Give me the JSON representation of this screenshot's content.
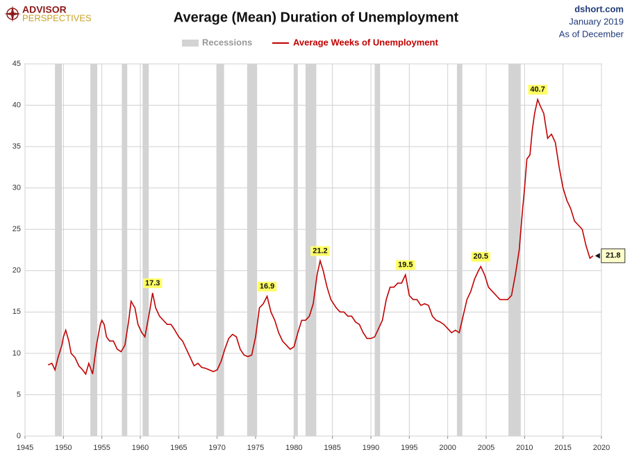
{
  "logo": {
    "line1": "ADVISOR",
    "line2": "PERSPECTIVES"
  },
  "source": {
    "site": "dshort.com",
    "date": "January 2019",
    "note": "As of December"
  },
  "chart_data": {
    "type": "line",
    "title": "Average (Mean) Duration of Unemployment",
    "recessions": {
      "name": "Recessions",
      "color": "#d3d3d3",
      "periods": [
        [
          1948.9,
          1949.8
        ],
        [
          1953.5,
          1954.4
        ],
        [
          1957.6,
          1958.3
        ],
        [
          1960.3,
          1961.1
        ],
        [
          1969.9,
          1970.9
        ],
        [
          1973.9,
          1975.2
        ],
        [
          1980.0,
          1980.5
        ],
        [
          1981.5,
          1982.9
        ],
        [
          1990.5,
          1991.2
        ],
        [
          2001.2,
          2001.9
        ],
        [
          2007.9,
          2009.5
        ]
      ]
    },
    "x": [
      1948.0,
      1948.5,
      1948.9,
      1949.3,
      1949.8,
      1950.0,
      1950.3,
      1950.7,
      1951.0,
      1951.5,
      1952.0,
      1952.5,
      1952.9,
      1953.3,
      1953.8,
      1954.3,
      1954.8,
      1955.0,
      1955.3,
      1955.6,
      1956.0,
      1956.5,
      1957.0,
      1957.5,
      1958.0,
      1958.5,
      1958.8,
      1959.3,
      1959.7,
      1960.2,
      1960.6,
      1961.2,
      1961.6,
      1962.0,
      1962.5,
      1963.0,
      1963.5,
      1964.0,
      1964.5,
      1965.0,
      1965.5,
      1966.0,
      1966.5,
      1967.0,
      1967.5,
      1968.0,
      1968.5,
      1969.0,
      1969.5,
      1970.0,
      1970.5,
      1971.0,
      1971.5,
      1972.0,
      1972.5,
      1973.0,
      1973.5,
      1974.0,
      1974.5,
      1975.0,
      1975.5,
      1976.0,
      1976.5,
      1977.0,
      1977.5,
      1978.0,
      1978.5,
      1979.0,
      1979.5,
      1980.0,
      1980.5,
      1981.0,
      1981.5,
      1982.0,
      1982.5,
      1983.0,
      1983.4,
      1983.8,
      1984.3,
      1984.8,
      1985.5,
      1986.0,
      1986.5,
      1987.0,
      1987.5,
      1988.0,
      1988.5,
      1989.0,
      1989.5,
      1990.0,
      1990.5,
      1991.0,
      1991.5,
      1992.0,
      1992.5,
      1993.0,
      1993.5,
      1994.0,
      1994.5,
      1995.0,
      1995.5,
      1996.0,
      1996.5,
      1997.0,
      1997.5,
      1998.0,
      1998.5,
      1999.0,
      1999.5,
      2000.0,
      2000.5,
      2001.0,
      2001.5,
      2002.0,
      2002.5,
      2003.0,
      2003.5,
      2004.0,
      2004.3,
      2004.8,
      2005.3,
      2005.8,
      2006.3,
      2006.8,
      2007.3,
      2007.8,
      2008.3,
      2008.8,
      2009.3,
      2009.7,
      2010.0,
      2010.3,
      2010.7,
      2011.0,
      2011.3,
      2011.7,
      2012.0,
      2012.5,
      2013.0,
      2013.5,
      2014.0,
      2014.5,
      2015.0,
      2015.5,
      2016.0,
      2016.5,
      2017.0,
      2017.5,
      2018.0,
      2018.5,
      2018.9
    ],
    "series": [
      {
        "name": "Average Weeks of Unemployment",
        "color": "#c00000",
        "values": [
          8.6,
          8.8,
          8.0,
          9.5,
          11.0,
          12.0,
          12.8,
          11.5,
          10.0,
          9.5,
          8.5,
          8.0,
          7.5,
          8.8,
          7.5,
          11.0,
          13.5,
          14.0,
          13.5,
          12.0,
          11.5,
          11.5,
          10.5,
          10.2,
          11.0,
          14.0,
          16.3,
          15.5,
          13.5,
          12.5,
          12.0,
          15.0,
          17.3,
          15.5,
          14.5,
          14.0,
          13.5,
          13.5,
          12.8,
          12.0,
          11.5,
          10.5,
          9.5,
          8.5,
          8.8,
          8.3,
          8.2,
          8.0,
          7.8,
          8.0,
          9.0,
          10.5,
          11.8,
          12.3,
          12.0,
          10.5,
          9.8,
          9.6,
          9.8,
          12.0,
          15.5,
          16.0,
          16.9,
          15.0,
          14.0,
          12.5,
          11.5,
          11.0,
          10.5,
          10.8,
          12.5,
          14.0,
          14.0,
          14.5,
          16.0,
          19.5,
          21.2,
          20.0,
          18.0,
          16.5,
          15.5,
          15.0,
          15.0,
          14.5,
          14.5,
          13.8,
          13.5,
          12.5,
          11.8,
          11.8,
          12.0,
          13.0,
          14.0,
          16.5,
          18.0,
          18.0,
          18.5,
          18.5,
          19.5,
          17.0,
          16.5,
          16.5,
          15.8,
          16.0,
          15.8,
          14.5,
          14.0,
          13.8,
          13.5,
          13.0,
          12.5,
          12.8,
          12.5,
          14.5,
          16.5,
          17.5,
          19.0,
          20.0,
          20.5,
          19.5,
          18.0,
          17.5,
          17.0,
          16.5,
          16.5,
          16.5,
          17.0,
          19.5,
          22.5,
          27.0,
          30.0,
          33.5,
          34.0,
          37.0,
          39.0,
          40.7,
          40.0,
          39.0,
          36.0,
          36.5,
          35.5,
          32.5,
          30.0,
          28.5,
          27.5,
          26.0,
          25.5,
          25.0,
          23.0,
          21.5,
          21.8
        ]
      }
    ],
    "annotations": [
      {
        "x": 1961.6,
        "value": 17.3
      },
      {
        "x": 1976.5,
        "value": 16.9
      },
      {
        "x": 1983.4,
        "value": 21.2
      },
      {
        "x": 1994.5,
        "value": 19.5
      },
      {
        "x": 2004.3,
        "value": 20.5
      },
      {
        "x": 2011.7,
        "value": 40.7
      }
    ],
    "last_value": {
      "x": 2018.9,
      "value": 21.8
    },
    "xlim": [
      1945,
      2020
    ],
    "xticks": [
      1945,
      1950,
      1955,
      1960,
      1965,
      1970,
      1975,
      1980,
      1985,
      1990,
      1995,
      2000,
      2005,
      2010,
      2015,
      2020
    ],
    "ylim": [
      0,
      45
    ],
    "yticks": [
      0,
      5,
      10,
      15,
      20,
      25,
      30,
      35,
      40,
      45
    ],
    "grid": true
  }
}
